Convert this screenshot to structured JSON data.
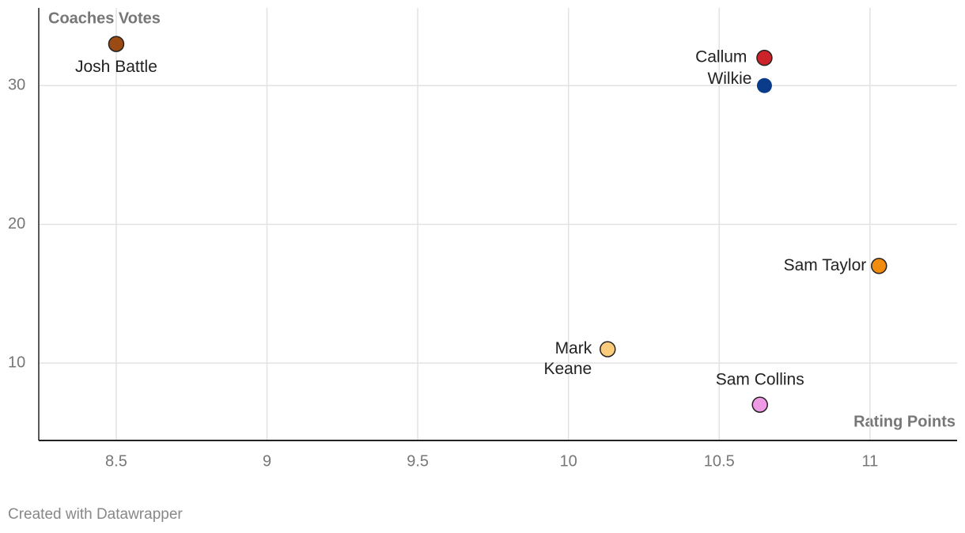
{
  "chart_data": {
    "type": "scatter",
    "y_label": "Coaches Votes",
    "x_label": "Rating Points",
    "credit": "Created with Datawrapper",
    "labels": [
      [
        "Josh Battle"
      ],
      [
        "Callum"
      ],
      [
        "Wilkie"
      ],
      [
        "Sam Taylor"
      ],
      [
        "Mark",
        "Keane"
      ],
      [
        "Sam Collins"
      ]
    ],
    "x": [
      8.5,
      10.65,
      10.65,
      11.03,
      10.13,
      10.635
    ],
    "values": [
      33,
      32,
      30,
      17,
      11,
      7
    ],
    "colors": [
      "#9a4a12",
      "#cc2229",
      "#0a3a8a",
      "#f28c0f",
      "#fdcb7c",
      "#ee9ae5"
    ],
    "xlim": [
      8.243,
      11.289
    ],
    "xticks": [
      8.5,
      9,
      9.5,
      10,
      10.5,
      11
    ],
    "ylim": [
      4.42,
      35.6
    ],
    "yticks": [
      10,
      20,
      30
    ],
    "grid": true
  }
}
